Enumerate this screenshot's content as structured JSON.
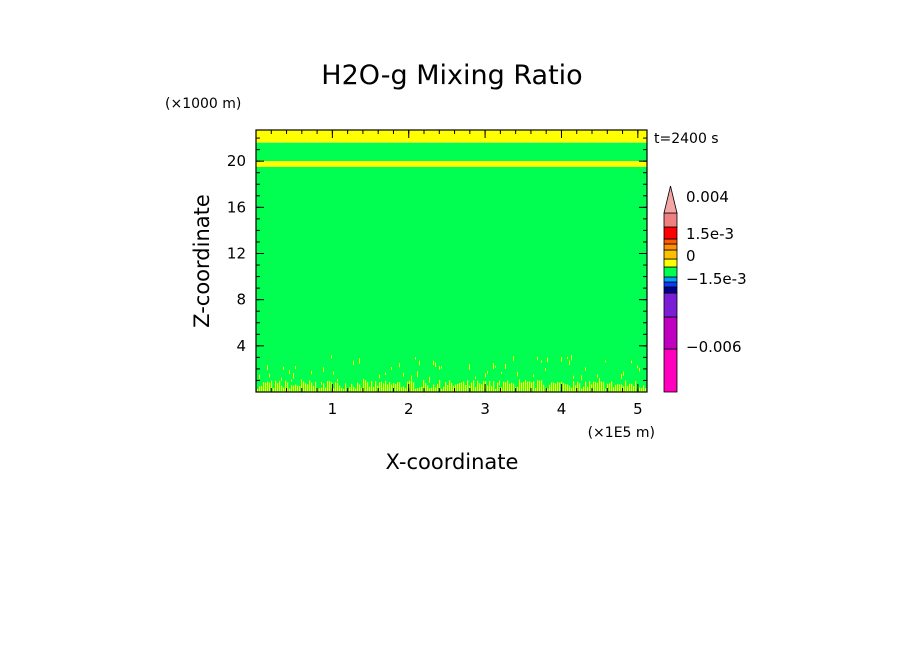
{
  "chart_data": {
    "type": "heatmap",
    "title": "H2O-g Mixing Ratio",
    "xlabel": "X-coordinate",
    "ylabel": "Z-coordinate",
    "x_unit": "(×1E5 m)",
    "y_unit": "(×1000 m)",
    "time_label": "t=2400 s",
    "xlim": [
      0,
      5.12
    ],
    "ylim": [
      0,
      22.7
    ],
    "x_ticks": [
      1,
      2,
      3,
      4,
      5
    ],
    "y_ticks": [
      4,
      8,
      12,
      16,
      20
    ],
    "x_tick_labels": [
      "1",
      "2",
      "3",
      "4",
      "5"
    ],
    "y_tick_labels": [
      "4",
      "8",
      "12",
      "16",
      "20"
    ],
    "field_regions": [
      {
        "zmin": 21.6,
        "zmax": 22.7,
        "value": "yellow"
      },
      {
        "zmin": 20.0,
        "zmax": 21.6,
        "value": "green"
      },
      {
        "zmin": 19.5,
        "zmax": 20.0,
        "value": "yellow"
      },
      {
        "zmin": 0.0,
        "zmax": 19.5,
        "value": "green"
      }
    ],
    "surface_noise": {
      "zmin": 0.0,
      "zmax": 3.2,
      "value": "yellow"
    },
    "colorbar": {
      "levels": [
        {
          "color": "#ff00bf",
          "range": [
            -0.009,
            -0.006
          ]
        },
        {
          "color": "#c000c0",
          "range": [
            -0.006,
            -0.0045
          ]
        },
        {
          "color": "#7a1fd6",
          "range": [
            -0.0045,
            -0.0025
          ]
        },
        {
          "color": "#00008b",
          "range": [
            -0.0025,
            -0.0015
          ]
        },
        {
          "color": "#0a3cff",
          "range": [
            -0.0015,
            -0.001
          ]
        },
        {
          "color": "#00a0ff",
          "range": [
            -0.001,
            -0.0005
          ]
        },
        {
          "color": "#00ff50",
          "range": [
            -0.0005,
            0
          ]
        },
        {
          "color": "#ffff00",
          "range": [
            0,
            0.0005
          ]
        },
        {
          "color": "#ffc000",
          "range": [
            0.0005,
            0.001
          ]
        },
        {
          "color": "#ff9000",
          "range": [
            0.001,
            0.0015
          ]
        },
        {
          "color": "#ff5a00",
          "range": [
            0.0015,
            0.002
          ]
        },
        {
          "color": "#ff0000",
          "range": [
            0.002,
            0.003
          ]
        },
        {
          "color": "#f08080",
          "range": [
            0.003,
            0.004
          ]
        },
        {
          "color": "#f4a6a6",
          "range": [
            0.004,
            0.006
          ]
        }
      ],
      "labels": [
        "0.004",
        "1.5e-3",
        "0",
        "−1.5e-3",
        "−0.006"
      ]
    },
    "colors": {
      "green": "#00ff50",
      "yellow": "#ffff00"
    }
  }
}
